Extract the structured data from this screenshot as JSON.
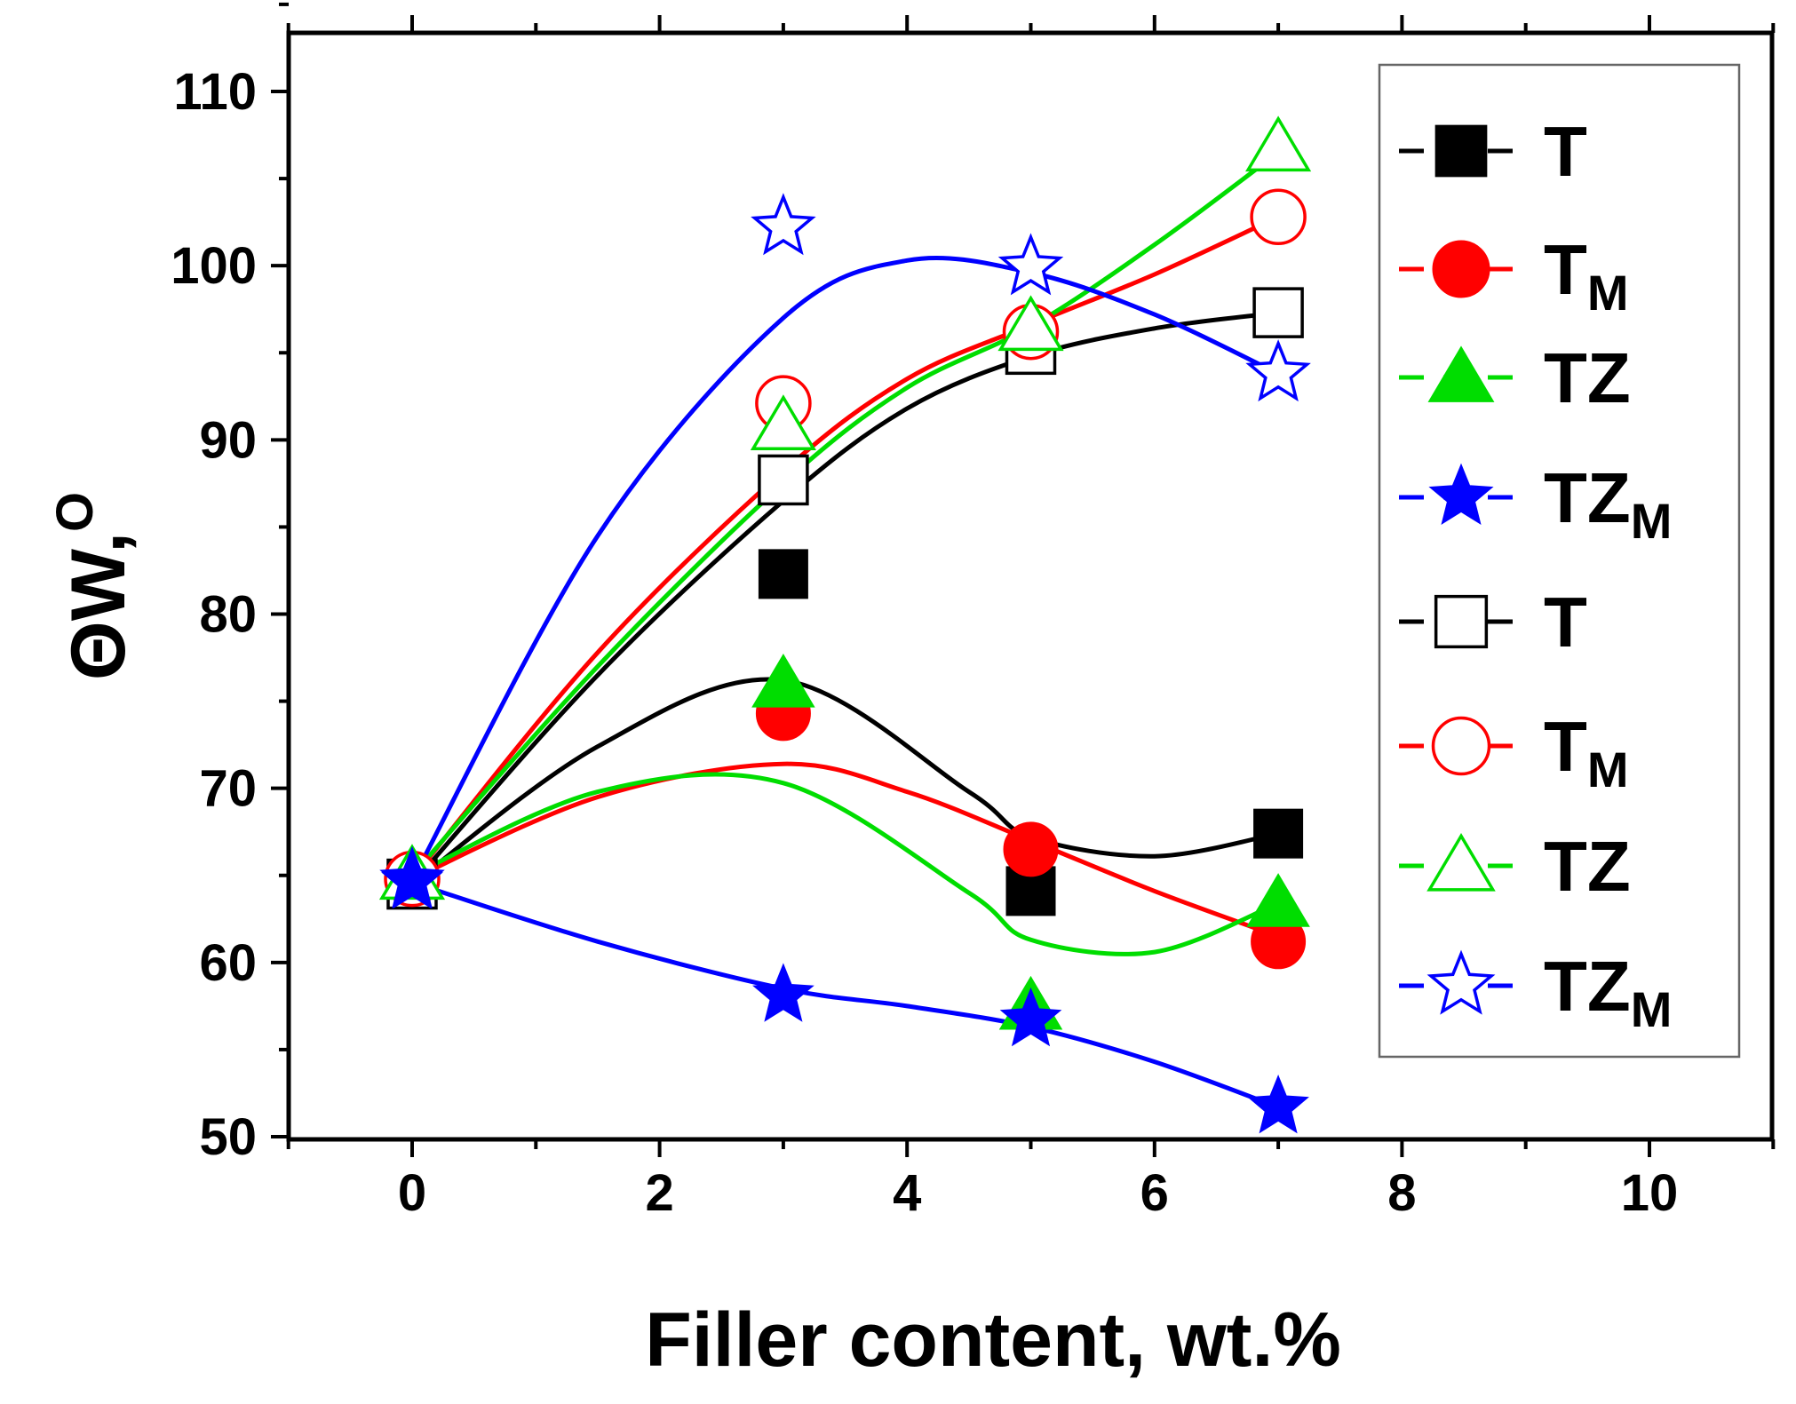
{
  "chart_data": {
    "type": "line",
    "title": "",
    "xlabel": "Filler content, wt.%",
    "ylabel": "ΘW, °",
    "ylabel_parts": {
      "main": "ΘW,",
      "sup": "O"
    },
    "xlim": [
      -1,
      11
    ],
    "ylim": [
      50,
      115
    ],
    "xticks": [
      0,
      2,
      4,
      6,
      8,
      10
    ],
    "xtick_labels": [
      "0",
      "2",
      "4",
      "6",
      "8",
      "10"
    ],
    "yticks": [
      50,
      60,
      70,
      80,
      90,
      100,
      110
    ],
    "ytick_labels": [
      "50",
      "60",
      "70",
      "80",
      "90",
      "100",
      "110"
    ],
    "grid": false,
    "legend_position": "right",
    "series": [
      {
        "name": "T",
        "base": "T",
        "sub": "",
        "marker": "square",
        "filled": true,
        "color": "#000000",
        "x": [
          0,
          3,
          5,
          7
        ],
        "y": [
          64.5,
          82.3,
          64.1,
          67.4
        ],
        "curve": [
          [
            0,
            64.5
          ],
          [
            1.5,
            72.4
          ],
          [
            3,
            76.2
          ],
          [
            4.5,
            69.8
          ],
          [
            5,
            67.2
          ],
          [
            6,
            66.1
          ],
          [
            7,
            67.4
          ]
        ]
      },
      {
        "name": "TM",
        "base": "T",
        "sub": "M",
        "marker": "circle",
        "filled": true,
        "color": "#ff0000",
        "x": [
          0,
          3,
          5,
          7
        ],
        "y": [
          64.8,
          74.3,
          66.5,
          61.2
        ],
        "curve": [
          [
            0,
            64.8
          ],
          [
            1.5,
            69.5
          ],
          [
            3,
            71.4
          ],
          [
            4,
            69.8
          ],
          [
            5,
            67.0
          ],
          [
            6,
            64.1
          ],
          [
            7,
            61.5
          ]
        ]
      },
      {
        "name": "TZ",
        "base": "TZ",
        "sub": "",
        "marker": "triangle",
        "filled": true,
        "color": "#00dd00",
        "x": [
          0,
          3,
          5,
          7
        ],
        "y": [
          65,
          76,
          57.5,
          63.4
        ],
        "curve": [
          [
            0,
            65
          ],
          [
            1.5,
            69.8
          ],
          [
            3,
            70.3
          ],
          [
            4.5,
            64.0
          ],
          [
            5,
            61.3
          ],
          [
            6,
            60.6
          ],
          [
            7,
            63.4
          ]
        ]
      },
      {
        "name": "TZM",
        "base": "TZ",
        "sub": "M",
        "marker": "star",
        "filled": true,
        "color": "#0000ff",
        "x": [
          0,
          3,
          5,
          7
        ],
        "y": [
          64.6,
          58.1,
          56.7,
          51.7
        ],
        "curve": [
          [
            0,
            64.6
          ],
          [
            1.5,
            61.2
          ],
          [
            3,
            58.5
          ],
          [
            4,
            57.5
          ],
          [
            5,
            56.3
          ],
          [
            6,
            54.3
          ],
          [
            7,
            51.7
          ]
        ]
      },
      {
        "name": "T",
        "base": "T",
        "sub": "",
        "marker": "square",
        "filled": false,
        "color": "#000000",
        "x": [
          0,
          3,
          5,
          7
        ],
        "y": [
          64.5,
          87.7,
          95.2,
          97.3
        ],
        "curve": [
          [
            0,
            64.5
          ],
          [
            1.5,
            76.5
          ],
          [
            3,
            86.5
          ],
          [
            4,
            91.8
          ],
          [
            5,
            94.8
          ],
          [
            6,
            96.4
          ],
          [
            7,
            97.3
          ]
        ]
      },
      {
        "name": "TM",
        "base": "T",
        "sub": "M",
        "marker": "circle",
        "filled": false,
        "color": "#ff0000",
        "x": [
          0,
          3,
          5,
          7
        ],
        "y": [
          64.8,
          92.1,
          96.2,
          102.8
        ],
        "curve": [
          [
            0,
            64.8
          ],
          [
            1.5,
            77.8
          ],
          [
            3,
            88.2
          ],
          [
            4,
            93.5
          ],
          [
            5,
            96.6
          ],
          [
            6,
            99.5
          ],
          [
            7,
            102.8
          ]
        ]
      },
      {
        "name": "TZ",
        "base": "TZ",
        "sub": "",
        "marker": "triangle",
        "filled": false,
        "color": "#00dd00",
        "x": [
          0,
          3,
          5,
          7
        ],
        "y": [
          65,
          90.8,
          96.5,
          106.8
        ],
        "curve": [
          [
            0,
            65
          ],
          [
            1.5,
            77.0
          ],
          [
            3,
            87.5
          ],
          [
            4,
            93.0
          ],
          [
            5,
            96.5
          ],
          [
            6,
            101.2
          ],
          [
            7,
            106.5
          ]
        ]
      },
      {
        "name": "TZM",
        "base": "TZ",
        "sub": "M",
        "marker": "star",
        "filled": false,
        "color": "#0000ff",
        "x": [
          0,
          3,
          5,
          7
        ],
        "y": [
          64.7,
          102.2,
          99.9,
          93.8
        ],
        "curve": [
          [
            0,
            64.7
          ],
          [
            1.5,
            84.5
          ],
          [
            3,
            97.0
          ],
          [
            4,
            100.3
          ],
          [
            5,
            99.6
          ],
          [
            6,
            97.2
          ],
          [
            7,
            93.8
          ]
        ]
      }
    ]
  }
}
